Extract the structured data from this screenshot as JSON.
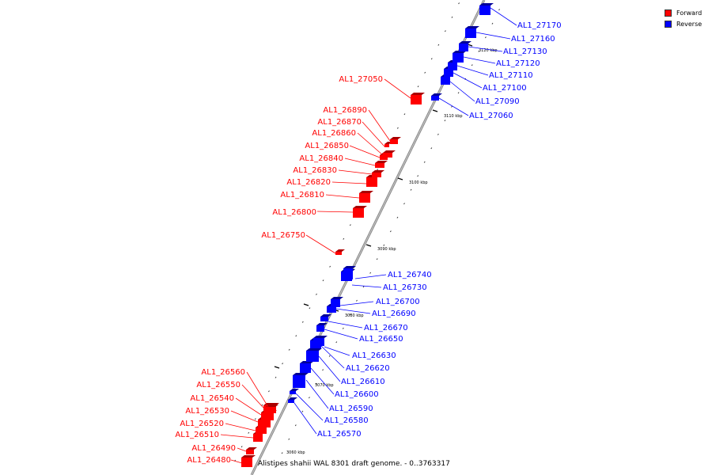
{
  "legend": {
    "forward_label": "Forward",
    "reverse_label": "Reverse",
    "forward_color": "#ff0000",
    "reverse_color": "#0000ff"
  },
  "caption": "Alistipes shahii WAL 8301 draft genome. - 0..3763317",
  "ticks": [
    "3060 kbp",
    "3070 kbp",
    "3080 kbp",
    "3090 kbp",
    "3100 kbp",
    "3110 kbp",
    "3120 kbp"
  ],
  "forward_genes": [
    "AL1_26480",
    "AL1_26490",
    "AL1_26510",
    "AL1_26520",
    "AL1_26530",
    "AL1_26540",
    "AL1_26550",
    "AL1_26560",
    "AL1_26750",
    "AL1_26800",
    "AL1_26810",
    "AL1_26820",
    "AL1_26830",
    "AL1_26840",
    "AL1_26850",
    "AL1_26860",
    "AL1_26870",
    "AL1_26890",
    "AL1_27050"
  ],
  "reverse_genes": [
    "AL1_26570",
    "AL1_26580",
    "AL1_26590",
    "AL1_26600",
    "AL1_26610",
    "AL1_26620",
    "AL1_26630",
    "AL1_26650",
    "AL1_26670",
    "AL1_26690",
    "AL1_26700",
    "AL1_26730",
    "AL1_26740",
    "AL1_27060",
    "AL1_27090",
    "AL1_27100",
    "AL1_27110",
    "AL1_27120",
    "AL1_27130",
    "AL1_27160",
    "AL1_27170"
  ]
}
